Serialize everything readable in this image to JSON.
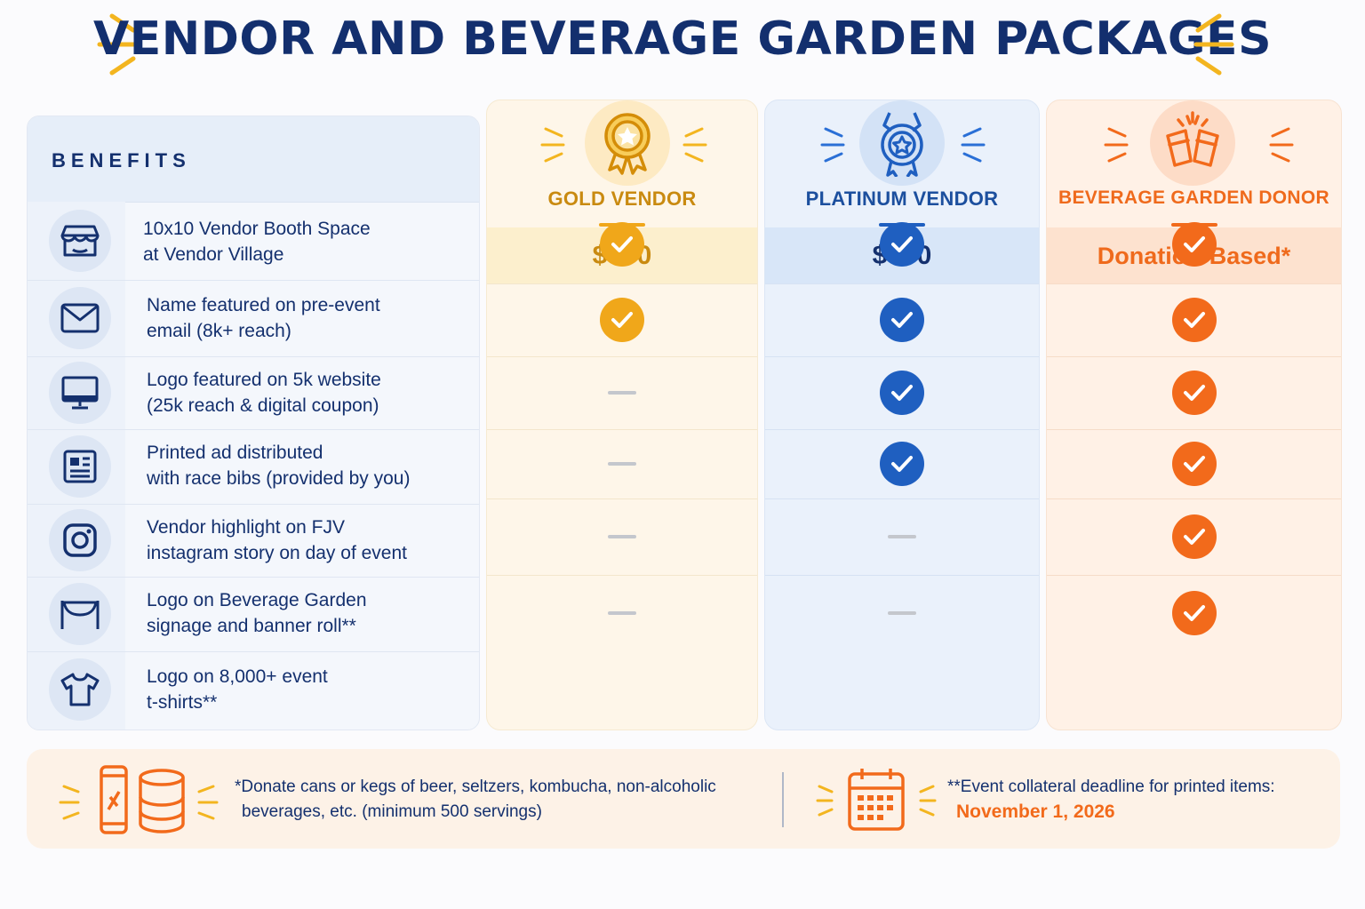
{
  "title": "VENDOR AND BEVERAGE GARDEN PACKAGES",
  "colors": {
    "navy": "#14306e",
    "gold": "#f0a71a",
    "gold_text": "#c98a10",
    "blue": "#1f5fc0",
    "orange": "#f26a1b",
    "dash": "#c4c7cd"
  },
  "benefits": {
    "header": "BENEFITS",
    "rows": [
      {
        "icon": "storefront-icon",
        "line1": "10x10 Vendor Booth Space",
        "line2": "at Vendor Village"
      },
      {
        "icon": "envelope-icon",
        "line1": "Name featured on pre-event",
        "line2": "email (8k+ reach)"
      },
      {
        "icon": "monitor-icon",
        "line1": "Logo featured on 5k website",
        "line2": "(25k reach & digital coupon)"
      },
      {
        "icon": "newspaper-icon",
        "line1": "Printed ad distributed",
        "line2": "with race bibs (provided by you)"
      },
      {
        "icon": "instagram-icon",
        "line1": "Vendor highlight on FJV",
        "line2": "instagram story on day of event"
      },
      {
        "icon": "banner-icon",
        "line1": "Logo on Beverage Garden",
        "line2": "signage and banner roll**"
      },
      {
        "icon": "tshirt-icon",
        "line1": "Logo on 8,000+ event",
        "line2": "t-shirts**"
      }
    ]
  },
  "tiers": [
    {
      "name": "GOLD VENDOR",
      "price": "$300",
      "icon": "award-ribbon-icon",
      "included": [
        null,
        true,
        true,
        false,
        false,
        false,
        false
      ]
    },
    {
      "name": "PLATINUM VENDOR",
      "price": "$500",
      "icon": "medal-star-icon",
      "included": [
        null,
        true,
        true,
        true,
        true,
        false,
        false
      ]
    },
    {
      "name": "BEVERAGE GARDEN DONOR",
      "price": "Donation-Based*",
      "icon": "cheers-cups-icon",
      "included": [
        null,
        true,
        true,
        true,
        true,
        true,
        true
      ]
    }
  ],
  "footer": {
    "note1_line1": "*Donate cans or kegs of beer, seltzers, kombucha, non-alcoholic",
    "note1_line2": "beverages, etc. (minimum 500 servings)",
    "note2_line1": "**Event collateral deadline for printed items:",
    "note2_date": "November 1, 2026"
  }
}
